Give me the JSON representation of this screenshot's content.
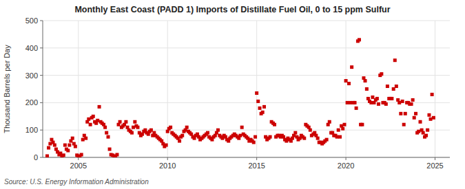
{
  "chart_data": {
    "type": "scatter",
    "title": "Monthly East Coast (PADD 1) Imports of Distillate Fuel Oil, 0 to 15 ppm Sulfur",
    "y_label": "Thousand Barrels per Day",
    "annotation": "Source: U.S. Energy Information Administration",
    "color": "#cc0000",
    "marker": "square",
    "grid": true,
    "xlim": [
      2003.0,
      2025.83
    ],
    "xticks": [
      2005,
      2010,
      2015,
      2020,
      2025
    ],
    "ylim": [
      0,
      500
    ],
    "yticks": [
      0,
      100,
      200,
      300,
      400,
      500
    ],
    "x": [
      2003.25,
      2003.33,
      2003.42,
      2003.5,
      2003.58,
      2003.67,
      2003.75,
      2003.83,
      2003.92,
      2004.0,
      2004.08,
      2004.17,
      2004.25,
      2004.33,
      2004.42,
      2004.5,
      2004.58,
      2004.67,
      2004.75,
      2004.83,
      2004.92,
      2005.0,
      2005.08,
      2005.17,
      2005.25,
      2005.33,
      2005.42,
      2005.5,
      2005.58,
      2005.67,
      2005.75,
      2005.83,
      2005.92,
      2006.0,
      2006.08,
      2006.17,
      2006.25,
      2006.33,
      2006.42,
      2006.5,
      2006.58,
      2006.67,
      2006.75,
      2006.83,
      2006.92,
      2007.0,
      2007.08,
      2007.17,
      2007.25,
      2007.33,
      2007.42,
      2007.5,
      2007.58,
      2007.67,
      2007.75,
      2007.83,
      2007.92,
      2008.0,
      2008.08,
      2008.17,
      2008.25,
      2008.33,
      2008.42,
      2008.5,
      2008.58,
      2008.67,
      2008.75,
      2008.83,
      2008.92,
      2009.0,
      2009.08,
      2009.17,
      2009.25,
      2009.33,
      2009.42,
      2009.5,
      2009.58,
      2009.67,
      2009.75,
      2009.83,
      2009.92,
      2010.0,
      2010.08,
      2010.17,
      2010.25,
      2010.33,
      2010.42,
      2010.5,
      2010.58,
      2010.67,
      2010.75,
      2010.83,
      2010.92,
      2011.0,
      2011.08,
      2011.17,
      2011.25,
      2011.33,
      2011.42,
      2011.5,
      2011.58,
      2011.67,
      2011.75,
      2011.83,
      2011.92,
      2012.0,
      2012.08,
      2012.17,
      2012.25,
      2012.33,
      2012.42,
      2012.5,
      2012.58,
      2012.67,
      2012.75,
      2012.83,
      2012.92,
      2013.0,
      2013.08,
      2013.17,
      2013.25,
      2013.33,
      2013.42,
      2013.5,
      2013.58,
      2013.67,
      2013.75,
      2013.83,
      2013.92,
      2014.0,
      2014.08,
      2014.17,
      2014.25,
      2014.33,
      2014.42,
      2014.5,
      2014.58,
      2014.67,
      2014.75,
      2014.83,
      2014.92,
      2015.0,
      2015.08,
      2015.17,
      2015.25,
      2015.33,
      2015.42,
      2015.5,
      2015.58,
      2015.67,
      2015.75,
      2015.83,
      2015.92,
      2016.0,
      2016.08,
      2016.17,
      2016.25,
      2016.33,
      2016.42,
      2016.5,
      2016.58,
      2016.67,
      2016.75,
      2016.83,
      2016.92,
      2017.0,
      2017.08,
      2017.17,
      2017.25,
      2017.33,
      2017.42,
      2017.5,
      2017.58,
      2017.67,
      2017.75,
      2017.83,
      2017.92,
      2018.0,
      2018.08,
      2018.17,
      2018.25,
      2018.33,
      2018.42,
      2018.5,
      2018.58,
      2018.67,
      2018.75,
      2018.83,
      2018.92,
      2019.0,
      2019.08,
      2019.17,
      2019.25,
      2019.33,
      2019.42,
      2019.5,
      2019.58,
      2019.67,
      2019.75,
      2019.83,
      2019.92,
      2020.0,
      2020.08,
      2020.17,
      2020.25,
      2020.33,
      2020.42,
      2020.5,
      2020.58,
      2020.67,
      2020.75,
      2020.83,
      2020.92,
      2021.0,
      2021.08,
      2021.17,
      2021.25,
      2021.33,
      2021.42,
      2021.5,
      2021.58,
      2021.67,
      2021.75,
      2021.83,
      2021.92,
      2022.0,
      2022.08,
      2022.17,
      2022.25,
      2022.33,
      2022.42,
      2022.5,
      2022.58,
      2022.67,
      2022.75,
      2022.83,
      2022.92,
      2023.0,
      2023.08,
      2023.17,
      2023.25,
      2023.33,
      2023.42,
      2023.5,
      2023.58,
      2023.67,
      2023.75,
      2023.83,
      2023.92,
      2024.0,
      2024.08,
      2024.17,
      2024.25,
      2024.33,
      2024.42,
      2024.5,
      2024.58,
      2024.67,
      2024.75,
      2024.83,
      2024.92
    ],
    "values": [
      5,
      35,
      50,
      65,
      55,
      45,
      30,
      20,
      10,
      15,
      5,
      8,
      45,
      30,
      25,
      45,
      60,
      70,
      50,
      40,
      8,
      3,
      5,
      10,
      65,
      80,
      70,
      130,
      140,
      120,
      145,
      150,
      130,
      125,
      135,
      185,
      130,
      125,
      120,
      110,
      90,
      75,
      30,
      10,
      8,
      5,
      3,
      10,
      120,
      130,
      110,
      115,
      120,
      130,
      110,
      100,
      95,
      90,
      110,
      130,
      115,
      110,
      90,
      80,
      85,
      95,
      100,
      90,
      85,
      95,
      100,
      80,
      90,
      80,
      75,
      70,
      65,
      60,
      50,
      40,
      45,
      95,
      105,
      110,
      90,
      85,
      80,
      75,
      70,
      60,
      75,
      80,
      95,
      100,
      110,
      95,
      90,
      85,
      75,
      70,
      80,
      85,
      75,
      65,
      70,
      75,
      80,
      85,
      90,
      75,
      70,
      65,
      75,
      80,
      90,
      100,
      80,
      75,
      70,
      80,
      75,
      65,
      60,
      70,
      75,
      80,
      85,
      80,
      75,
      70,
      80,
      110,
      85,
      80,
      75,
      70,
      60,
      65,
      60,
      55,
      75,
      235,
      205,
      180,
      160,
      165,
      185,
      75,
      65,
      70,
      75,
      130,
      125,
      120,
      75,
      80,
      80,
      75,
      80,
      75,
      65,
      60,
      70,
      65,
      60,
      70,
      80,
      90,
      75,
      65,
      70,
      80,
      75,
      70,
      120,
      115,
      110,
      100,
      80,
      85,
      90,
      80,
      70,
      55,
      55,
      50,
      55,
      60,
      65,
      120,
      130,
      90,
      90,
      80,
      80,
      75,
      100,
      75,
      115,
      105,
      120,
      280,
      200,
      270,
      200,
      330,
      200,
      200,
      180,
      425,
      430,
      120,
      120,
      290,
      280,
      250,
      215,
      205,
      200,
      220,
      200,
      210,
      215,
      195,
      300,
      305,
      200,
      200,
      195,
      260,
      215,
      215,
      215,
      250,
      355,
      260,
      210,
      200,
      160,
      205,
      120,
      160,
      200,
      200,
      195,
      195,
      210,
      145,
      160,
      90,
      95,
      130,
      100,
      90,
      75,
      80,
      100,
      155,
      140,
      230,
      145
    ]
  }
}
